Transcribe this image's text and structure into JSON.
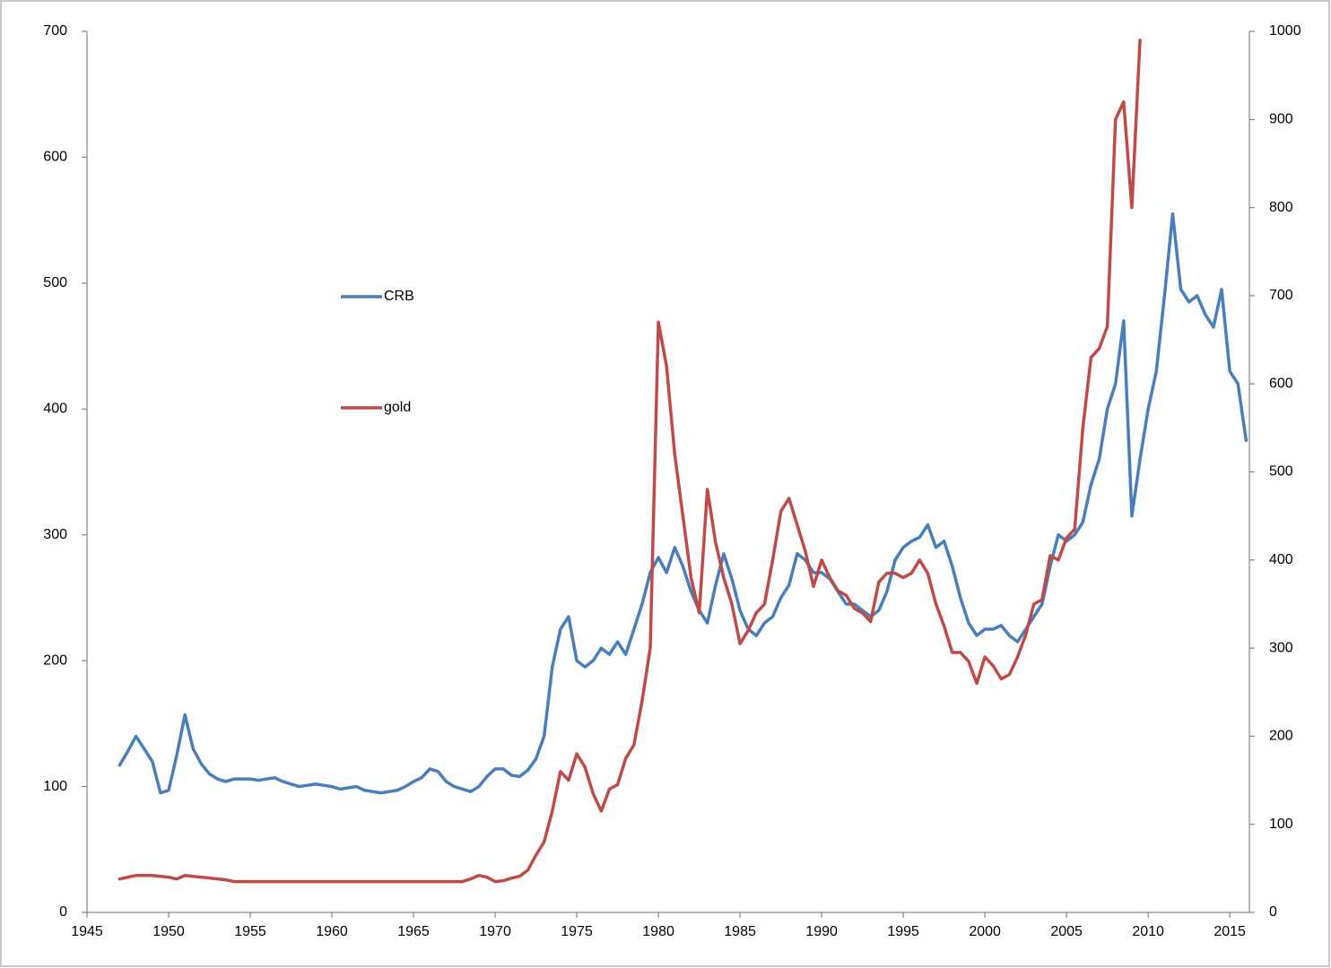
{
  "chart_data": {
    "type": "line",
    "x": [
      1947,
      1947.5,
      1948,
      1948.5,
      1949,
      1949.5,
      1950,
      1950.5,
      1951,
      1951.5,
      1952,
      1952.5,
      1953,
      1953.5,
      1954,
      1954.5,
      1955,
      1955.5,
      1956,
      1956.5,
      1957,
      1957.5,
      1958,
      1958.5,
      1959,
      1959.5,
      1960,
      1960.5,
      1961,
      1961.5,
      1962,
      1962.5,
      1963,
      1963.5,
      1964,
      1964.5,
      1965,
      1965.5,
      1966,
      1966.5,
      1967,
      1967.5,
      1968,
      1968.5,
      1969,
      1969.5,
      1970,
      1970.5,
      1971,
      1971.5,
      1972,
      1972.5,
      1973,
      1973.5,
      1974,
      1974.5,
      1975,
      1975.5,
      1976,
      1976.5,
      1977,
      1977.5,
      1978,
      1978.5,
      1979,
      1979.5,
      1980,
      1980.5,
      1981,
      1981.5,
      1982,
      1982.5,
      1983,
      1983.5,
      1984,
      1984.5,
      1985,
      1985.5,
      1986,
      1986.5,
      1987,
      1987.5,
      1988,
      1988.5,
      1989,
      1989.5,
      1990,
      1990.5,
      1991,
      1991.5,
      1992,
      1992.5,
      1993,
      1993.5,
      1994,
      1994.5,
      1995,
      1995.5,
      1996,
      1996.5,
      1997,
      1997.5,
      1998,
      1998.5,
      1999,
      1999.5,
      2000,
      2000.5,
      2001,
      2001.5,
      2002,
      2002.5,
      2003,
      2003.5,
      2004,
      2004.5,
      2005,
      2005.5,
      2006,
      2006.5,
      2007,
      2007.5,
      2008,
      2008.5,
      2009,
      2009.5,
      2010,
      2010.5,
      2011,
      2011.5,
      2012,
      2012.5,
      2013,
      2013.5,
      2014,
      2014.5,
      2015,
      2015.5,
      2016
    ],
    "series": [
      {
        "name": "CRB",
        "color": "#4a7ebb",
        "axis": "y",
        "values": [
          117,
          128,
          140,
          130,
          120,
          95,
          97,
          125,
          157,
          130,
          118,
          110,
          106,
          104,
          106,
          106,
          106,
          105,
          106,
          107,
          104,
          102,
          100,
          101,
          102,
          101,
          100,
          98,
          99,
          100,
          97,
          96,
          95,
          96,
          97,
          100,
          104,
          107,
          114,
          112,
          104,
          100,
          98,
          96,
          100,
          108,
          114,
          114,
          109,
          108,
          113,
          122,
          140,
          195,
          225,
          235,
          200,
          195,
          200,
          210,
          205,
          215,
          205,
          225,
          245,
          270,
          282,
          270,
          290,
          275,
          255,
          240,
          230,
          260,
          285,
          265,
          240,
          225,
          220,
          230,
          235,
          250,
          260,
          285,
          280,
          270,
          270,
          265,
          255,
          245,
          245,
          240,
          235,
          240,
          255,
          280,
          290,
          295,
          298,
          308,
          290,
          295,
          275,
          250,
          230,
          220,
          225,
          225,
          228,
          220,
          215,
          225,
          235,
          245,
          275,
          300,
          295,
          300,
          310,
          340,
          360,
          400,
          420,
          470,
          315,
          360,
          400,
          430,
          490,
          555,
          495,
          485,
          490,
          475,
          465,
          495,
          430,
          420,
          375
        ]
      },
      {
        "name": "gold",
        "color": "#be4b48",
        "axis": "y2",
        "values": [
          38,
          40,
          42,
          42,
          42,
          41,
          40,
          38,
          42,
          41,
          40,
          39,
          38,
          37,
          35,
          35,
          35,
          35,
          35,
          35,
          35,
          35,
          35,
          35,
          35,
          35,
          35,
          35,
          35,
          35,
          35,
          35,
          35,
          35,
          35,
          35,
          35,
          35,
          35,
          35,
          35,
          35,
          35,
          38,
          42,
          40,
          35,
          36,
          39,
          41,
          48,
          65,
          80,
          115,
          160,
          150,
          180,
          165,
          135,
          115,
          140,
          145,
          175,
          190,
          240,
          300,
          670,
          620,
          520,
          450,
          380,
          340,
          480,
          420,
          380,
          350,
          305,
          320,
          340,
          350,
          400,
          455,
          470,
          440,
          410,
          370,
          400,
          380,
          365,
          360,
          345,
          340,
          330,
          375,
          385,
          385,
          380,
          385,
          400,
          385,
          350,
          325,
          295,
          295,
          285,
          260,
          290,
          280,
          265,
          270,
          290,
          315,
          350,
          355,
          405,
          400,
          425,
          435,
          550,
          630,
          640,
          665,
          900,
          920,
          800,
          990,
          null,
          null,
          null,
          null,
          null,
          null,
          null,
          null,
          null,
          null,
          null,
          null,
          null
        ]
      }
    ],
    "xlim": [
      1945,
      2016.2
    ],
    "xticks": [
      1945,
      1950,
      1955,
      1960,
      1965,
      1970,
      1975,
      1980,
      1985,
      1990,
      1995,
      2000,
      2005,
      2010,
      2015
    ],
    "ylim": [
      0,
      700
    ],
    "yticks": [
      0,
      100,
      200,
      300,
      400,
      500,
      600,
      700
    ],
    "y2lim": [
      0,
      1000
    ],
    "y2ticks": [
      0,
      100,
      200,
      300,
      400,
      500,
      600,
      700,
      800,
      900,
      1000
    ],
    "grid": false,
    "legend": "center-left"
  }
}
